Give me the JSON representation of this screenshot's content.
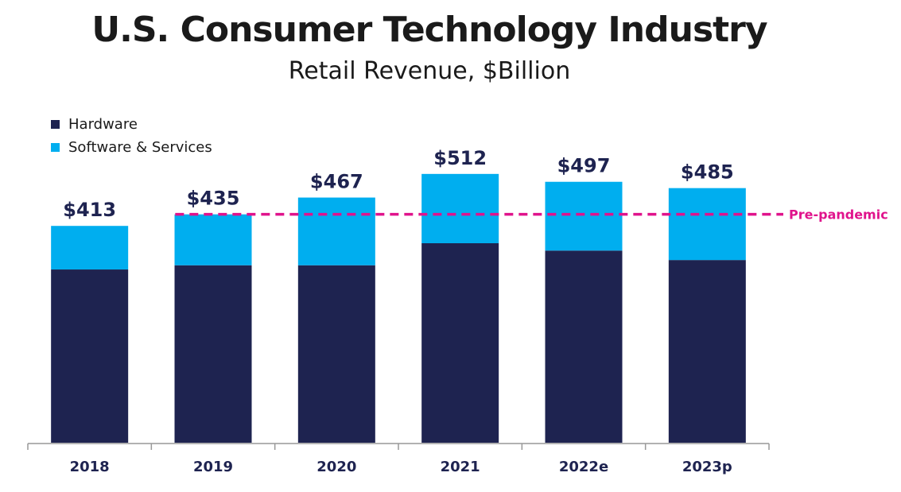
{
  "title": "U.S. Consumer Technology Industry",
  "subtitle": "Retail Revenue, $Billion",
  "colors": {
    "hardware": "#1e2350",
    "software_services": "#00aeef",
    "reference_line": "#e0138c",
    "axis": "#999999",
    "text": "#1e2350"
  },
  "chart_data": {
    "type": "bar",
    "stacked": true,
    "categories": [
      "2018",
      "2019",
      "2020",
      "2021",
      "2022e",
      "2023p"
    ],
    "series": [
      {
        "name": "Hardware",
        "values": [
          330,
          338,
          338,
          380,
          366,
          348
        ]
      },
      {
        "name": "Software & Services",
        "values": [
          83,
          97,
          129,
          132,
          131,
          137
        ]
      }
    ],
    "totals": [
      413,
      435,
      467,
      512,
      497,
      485
    ],
    "total_labels": [
      "$413",
      "$435",
      "$467",
      "$512",
      "$497",
      "$485"
    ],
    "reference_line": {
      "label": "Pre-pandemic",
      "value": 435
    },
    "ylim": [
      0,
      560
    ],
    "legend_position": "top-left",
    "grid": false
  }
}
